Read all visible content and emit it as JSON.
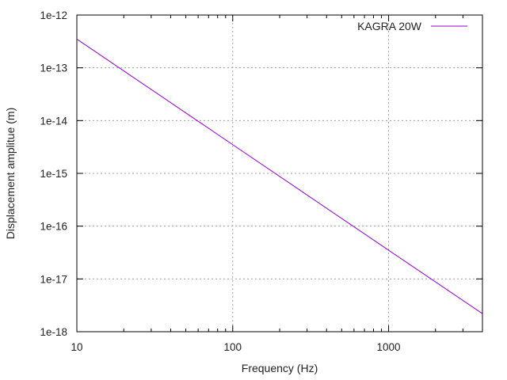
{
  "chart_data": {
    "type": "line",
    "title": "",
    "xlabel": "Frequency (Hz)",
    "ylabel": "Displacement amplitue (m)",
    "x_scale": "log",
    "y_scale": "log",
    "xlim": [
      10,
      4000
    ],
    "ylim": [
      1e-18,
      1e-12
    ],
    "x_ticks": [
      10,
      100,
      1000
    ],
    "x_tick_labels": [
      "10",
      "100",
      "1000"
    ],
    "y_ticks": [
      1e-12,
      1e-13,
      1e-14,
      1e-15,
      1e-16,
      1e-17,
      1e-18
    ],
    "y_tick_labels": [
      "1e-12",
      "1e-13",
      "1e-14",
      "1e-15",
      "1e-16",
      "1e-17",
      "1e-18"
    ],
    "grid": true,
    "legend_position": "top-right",
    "series": [
      {
        "name": "KAGRA 20W",
        "color": "#9400d3",
        "x": [
          10,
          100,
          1000,
          4000
        ],
        "y": [
          3.5e-13,
          3.5e-15,
          3.5e-17,
          2.2e-18
        ]
      }
    ]
  }
}
